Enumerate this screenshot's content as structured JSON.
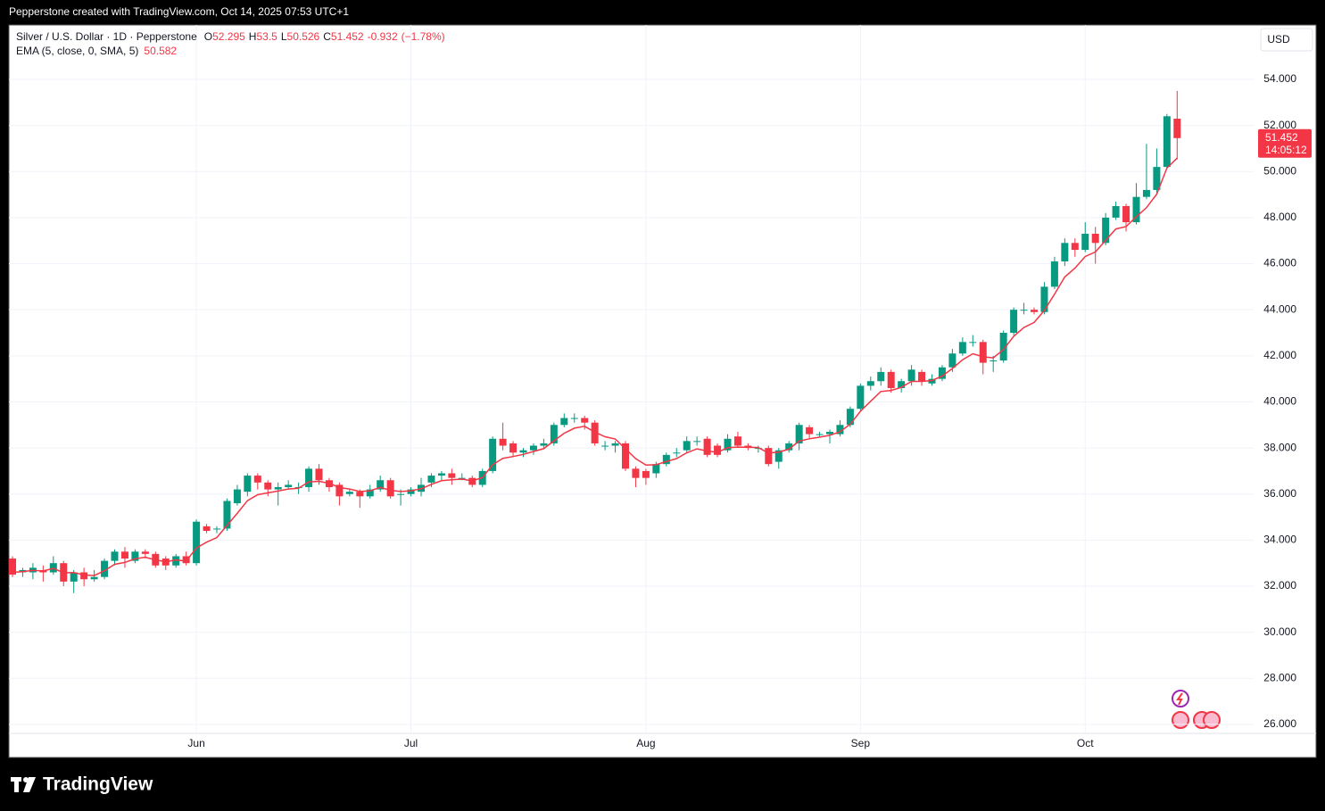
{
  "header": {
    "credit": "Pepperstone created with TradingView.com, Oct 14, 2025 07:53 UTC+1",
    "logo": "TradingView"
  },
  "chart_data": {
    "type": "candlestick",
    "title": "Silver / U.S. Dollar · 1D · Pepperstone",
    "ohlc_letters": [
      "O",
      "H",
      "L",
      "C"
    ],
    "change": -0.932,
    "change_percent_label": "(−1.78%)",
    "currency": "USD",
    "countdown": "14:05:12",
    "up_color": "#089981",
    "down_color": "#f23645",
    "grid": true,
    "categories": [
      null,
      null,
      null,
      null,
      null,
      null,
      null,
      null,
      null,
      null,
      null,
      null,
      null,
      null,
      null,
      null,
      null,
      null,
      "Jun",
      null,
      null,
      null,
      null,
      null,
      null,
      null,
      null,
      null,
      null,
      null,
      null,
      null,
      null,
      null,
      null,
      null,
      null,
      null,
      null,
      "Jul",
      null,
      null,
      null,
      null,
      null,
      null,
      null,
      null,
      null,
      null,
      null,
      null,
      null,
      null,
      null,
      null,
      null,
      null,
      null,
      null,
      null,
      null,
      "Aug",
      null,
      null,
      null,
      null,
      null,
      null,
      null,
      null,
      null,
      null,
      null,
      null,
      null,
      null,
      null,
      null,
      null,
      null,
      null,
      null,
      "Sep",
      null,
      null,
      null,
      null,
      null,
      null,
      null,
      null,
      null,
      null,
      null,
      null,
      null,
      null,
      null,
      null,
      null,
      null,
      null,
      null,
      null,
      "Oct",
      null,
      null,
      null,
      null,
      null,
      null,
      null,
      null,
      null
    ],
    "open": [
      33.2,
      32.6,
      32.6,
      32.7,
      32.6,
      33.0,
      32.2,
      32.6,
      32.3,
      32.4,
      33.1,
      33.5,
      33.1,
      33.5,
      33.4,
      33.2,
      32.9,
      33.3,
      33.0,
      34.6,
      34.5,
      34.5,
      35.6,
      36.1,
      36.8,
      36.5,
      36.2,
      36.3,
      36.3,
      36.3,
      37.1,
      36.6,
      36.4,
      36.0,
      36.1,
      35.9,
      36.2,
      36.6,
      36.0,
      36.0,
      36.1,
      36.5,
      36.8,
      36.9,
      36.7,
      36.7,
      36.4,
      37.0,
      38.4,
      38.2,
      37.8,
      37.9,
      38.1,
      38.2,
      39.0,
      39.3,
      39.3,
      39.1,
      38.1,
      38.1,
      38.2,
      37.1,
      37.0,
      36.9,
      37.3,
      37.8,
      37.9,
      38.3,
      38.4,
      38.1,
      37.9,
      38.5,
      38.1,
      38.0,
      38.0,
      37.4,
      37.9,
      38.2,
      38.9,
      38.6,
      38.6,
      38.6,
      39.0,
      39.7,
      40.7,
      40.9,
      41.3,
      40.6,
      40.9,
      41.3,
      40.8,
      41.0,
      41.5,
      42.1,
      42.6,
      42.6,
      41.8,
      41.8,
      43.0,
      44.0,
      44.0,
      43.9,
      45.0,
      46.1,
      46.9,
      46.6,
      47.3,
      46.9,
      48.0,
      48.5,
      47.8,
      48.9,
      49.2,
      50.2,
      52.295
    ],
    "high": [
      33.3,
      32.8,
      33.0,
      32.9,
      33.3,
      33.1,
      32.7,
      32.8,
      32.7,
      33.2,
      33.6,
      33.7,
      33.6,
      33.6,
      33.5,
      33.3,
      33.4,
      33.5,
      34.9,
      34.7,
      34.6,
      35.8,
      36.4,
      36.9,
      36.9,
      36.6,
      36.5,
      36.6,
      36.5,
      37.2,
      37.3,
      36.7,
      36.5,
      36.2,
      36.2,
      36.4,
      36.8,
      36.7,
      36.2,
      36.3,
      36.7,
      36.9,
      37.0,
      37.1,
      36.9,
      36.8,
      37.1,
      38.5,
      39.1,
      38.3,
      38.0,
      38.2,
      38.4,
      39.1,
      39.5,
      39.5,
      39.4,
      39.2,
      38.3,
      38.3,
      38.3,
      37.2,
      37.1,
      37.4,
      37.8,
      38.0,
      38.5,
      38.5,
      38.5,
      38.2,
      38.6,
      38.7,
      38.2,
      38.1,
      38.1,
      38.0,
      38.3,
      39.1,
      39.0,
      38.7,
      38.8,
      39.2,
      39.8,
      40.8,
      41.1,
      41.5,
      41.4,
      41.0,
      41.6,
      41.4,
      41.2,
      41.6,
      42.3,
      42.8,
      42.9,
      42.7,
      42.0,
      43.1,
      44.1,
      44.3,
      44.1,
      45.2,
      46.3,
      47.1,
      47.1,
      47.8,
      47.6,
      48.2,
      48.7,
      48.6,
      49.5,
      51.2,
      51.0,
      52.5,
      53.5
    ],
    "low": [
      32.4,
      32.4,
      32.3,
      32.2,
      32.5,
      32.0,
      31.7,
      32.0,
      32.2,
      32.3,
      32.9,
      32.8,
      33.0,
      33.2,
      32.8,
      32.7,
      32.8,
      32.9,
      32.9,
      34.3,
      34.3,
      34.4,
      35.5,
      35.9,
      36.2,
      35.9,
      35.5,
      36.2,
      36.0,
      36.1,
      36.4,
      36.1,
      35.5,
      35.9,
      35.4,
      35.8,
      36.1,
      35.8,
      35.5,
      35.9,
      35.9,
      36.3,
      36.6,
      36.4,
      36.6,
      36.3,
      36.3,
      36.9,
      37.9,
      37.6,
      37.6,
      37.7,
      38.0,
      38.1,
      38.9,
      39.1,
      38.8,
      38.1,
      37.9,
      37.8,
      37.0,
      36.3,
      36.4,
      36.7,
      37.2,
      37.6,
      37.8,
      38.1,
      37.6,
      37.6,
      37.8,
      38.0,
      37.9,
      37.8,
      37.2,
      37.1,
      37.8,
      37.9,
      38.4,
      38.5,
      38.2,
      38.5,
      38.9,
      39.6,
      40.5,
      40.7,
      40.4,
      40.4,
      40.7,
      40.7,
      40.7,
      40.9,
      41.3,
      42.0,
      42.4,
      41.2,
      41.3,
      41.7,
      42.9,
      43.8,
      43.8,
      43.8,
      44.9,
      45.9,
      46.3,
      46.5,
      46.0,
      46.8,
      47.9,
      47.4,
      47.7,
      48.8,
      49.0,
      50.1,
      50.526
    ],
    "close": [
      32.5,
      32.7,
      32.8,
      32.6,
      33.0,
      32.2,
      32.6,
      32.3,
      32.4,
      33.1,
      33.5,
      33.2,
      33.5,
      33.4,
      32.9,
      32.9,
      33.3,
      33.0,
      34.8,
      34.4,
      34.5,
      35.7,
      36.2,
      36.8,
      36.5,
      36.2,
      36.3,
      36.4,
      36.3,
      37.1,
      36.6,
      36.3,
      35.9,
      36.1,
      35.9,
      36.2,
      36.6,
      35.9,
      36.0,
      36.2,
      36.4,
      36.8,
      36.9,
      36.7,
      36.7,
      36.4,
      37.0,
      38.4,
      38.1,
      37.8,
      37.9,
      38.1,
      38.2,
      39.0,
      39.3,
      39.3,
      39.1,
      38.2,
      38.1,
      38.2,
      37.1,
      36.7,
      36.7,
      37.3,
      37.7,
      37.8,
      38.3,
      38.3,
      37.7,
      37.7,
      38.4,
      38.1,
      38.0,
      38.0,
      37.3,
      37.9,
      38.2,
      39.0,
      38.6,
      38.6,
      38.7,
      39.0,
      39.7,
      40.7,
      40.9,
      41.3,
      40.6,
      40.9,
      41.4,
      40.9,
      41.0,
      41.5,
      42.1,
      42.6,
      42.6,
      41.7,
      41.8,
      43.0,
      44.0,
      44.0,
      43.9,
      45.0,
      46.1,
      46.9,
      46.6,
      47.3,
      46.9,
      48.0,
      48.5,
      47.8,
      48.9,
      49.2,
      50.2,
      52.4,
      51.452
    ],
    "ema": {
      "name": "EMA (5, close, 0, SMA, 5)",
      "color": "#f23645",
      "values": [
        32.6,
        32.63,
        32.69,
        32.66,
        32.77,
        32.58,
        32.59,
        32.49,
        32.46,
        32.67,
        32.95,
        33.03,
        33.19,
        33.26,
        33.14,
        33.06,
        33.14,
        33.09,
        33.66,
        33.91,
        34.11,
        34.64,
        35.16,
        35.71,
        35.97,
        36.05,
        36.13,
        36.22,
        36.25,
        36.53,
        36.55,
        36.47,
        36.28,
        36.22,
        36.11,
        36.14,
        36.29,
        36.16,
        36.11,
        36.14,
        36.23,
        36.42,
        36.58,
        36.62,
        36.65,
        36.57,
        36.71,
        37.27,
        37.55,
        37.63,
        37.72,
        37.85,
        37.97,
        38.31,
        38.64,
        38.86,
        38.94,
        38.69,
        38.49,
        38.39,
        37.96,
        37.54,
        37.26,
        37.27,
        37.41,
        37.54,
        37.79,
        37.96,
        37.87,
        37.81,
        38.01,
        38.04,
        38.03,
        38.02,
        37.78,
        37.82,
        37.95,
        38.3,
        38.4,
        38.47,
        38.55,
        38.7,
        39.03,
        39.59,
        40.03,
        40.45,
        40.5,
        40.63,
        40.89,
        40.89,
        40.93,
        41.12,
        41.45,
        41.83,
        42.09,
        41.96,
        41.91,
        42.27,
        42.85,
        43.23,
        43.45,
        43.97,
        44.68,
        45.42,
        45.81,
        46.31,
        46.51,
        47.01,
        47.51,
        47.61,
        48.04,
        48.43,
        49.02,
        50.15,
        50.582
      ]
    },
    "ylim": [
      25.61,
      56.285
    ],
    "yticks": [
      {
        "value": 26,
        "label": "26.000"
      },
      {
        "value": 28,
        "label": "28.000"
      },
      {
        "value": 30,
        "label": "30.000"
      },
      {
        "value": 32,
        "label": "32.000"
      },
      {
        "value": 34,
        "label": "34.000"
      },
      {
        "value": 36,
        "label": "36.000"
      },
      {
        "value": 38,
        "label": "38.000"
      },
      {
        "value": 40,
        "label": "40.000"
      },
      {
        "value": 42,
        "label": "42.000"
      },
      {
        "value": 44,
        "label": "44.000"
      },
      {
        "value": 46,
        "label": "46.000"
      },
      {
        "value": 48,
        "label": "48.000"
      },
      {
        "value": 50,
        "label": "50.000"
      },
      {
        "value": 52,
        "label": "52.000"
      },
      {
        "value": 54,
        "label": "54.000"
      }
    ]
  }
}
